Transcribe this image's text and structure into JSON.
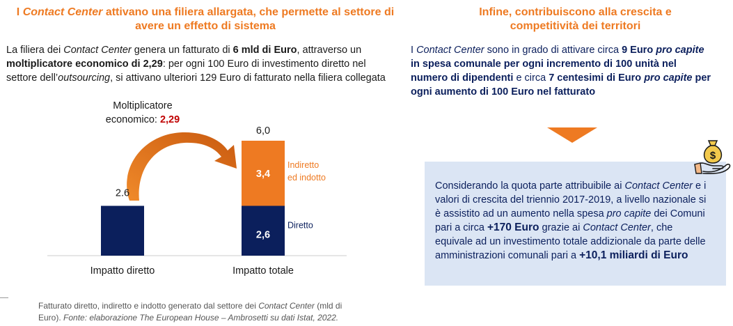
{
  "left": {
    "title_italic": "Contact Center",
    "title_prefix": "I ",
    "title_rest1": " attivano una filiera allargata, che permette al settore di",
    "title_line2": "avere un effetto di sistema",
    "para": {
      "l1a": "La filiera dei ",
      "l1b": "Contact Center",
      "l1c": " genera un fatturato di ",
      "l1d": "6 mld di Euro",
      "l1e": ", attraverso un",
      "l2a": "moltiplicatore economico di 2,29",
      "l2b": ": per ogni 100 Euro di investimento diretto nel",
      "l3a": "settore dell’",
      "l3b": "outsourcing",
      "l3c": ", si attivano ulteriori 129 Euro di fatturato nella filiera collegata"
    }
  },
  "chart_data": {
    "type": "bar",
    "categories": [
      "Impatto diretto",
      "Impatto totale"
    ],
    "series": [
      {
        "name": "Diretto",
        "values": [
          2.6,
          2.6
        ],
        "color": "#0b1f5c"
      },
      {
        "name": "Indiretto ed indotto",
        "values": [
          0,
          3.4
        ],
        "color": "#ee7a22"
      }
    ],
    "value_labels": {
      "diretto_top": "2.6",
      "totale_top": "6,0",
      "totale_indiretto": "3,4",
      "totale_diretto": "2,6"
    },
    "legend": {
      "indiretto_l1": "Indiretto",
      "indiretto_l2": "ed indotto",
      "diretto": "Diretto"
    },
    "multiplier": {
      "label_l1": "Moltiplicatore",
      "label_l2": "economico: ",
      "value": "2,29"
    },
    "ylim": [
      0,
      6.0
    ]
  },
  "footnote": {
    "l1a": "Fatturato diretto, indiretto e indotto generato dal settore dei ",
    "l1b": "Contact Center",
    "l1c": " (mld di",
    "l2a": "Euro). ",
    "l2b": "Fonte: elaborazione The European House – Ambrosetti su dati Istat, 2022."
  },
  "right": {
    "title_l1": "Infine, contribuiscono alla crescita e",
    "title_l2": "competitività dei territori",
    "para": {
      "l1a": "I ",
      "l1b": "Contact Center",
      "l1c": " sono in grado di attivare circa ",
      "l1d": "9 Euro ",
      "l1e": "pro capite",
      "l2": "in spesa comunale per ogni incremento di 100 unità nel",
      "l3a": "numero di dipendenti",
      "l3b": " e circa ",
      "l3c": "7 centesimi di Euro ",
      "l3d": "pro capite",
      "l3e": " per",
      "l4": "ogni aumento di 100 Euro nel fatturato"
    },
    "box": {
      "l1a": "Considerando la quota parte attribuibile ai ",
      "l1b": "Contact Center",
      "l1c": " e i",
      "l2": "valori di crescita del triennio 2017-2019, a livello nazionale si",
      "l3a": "è assistito ad un aumento nella spesa ",
      "l3b": "pro capite",
      "l3c": " dei Comuni",
      "l4a": "pari a circa ",
      "l4b": "+170 Euro",
      "l4c": " grazie ai ",
      "l4d": "Contact Center",
      "l4e": ", che",
      "l5": "equivale ad un investimento totale addizionale da parte delle",
      "l6a": "amministrazioni comunali pari a ",
      "l6b": "+10,1 miliardi di Euro"
    }
  },
  "icons": {
    "arrow": "down-arrow-icon",
    "money": "money-bag-hand-icon"
  }
}
